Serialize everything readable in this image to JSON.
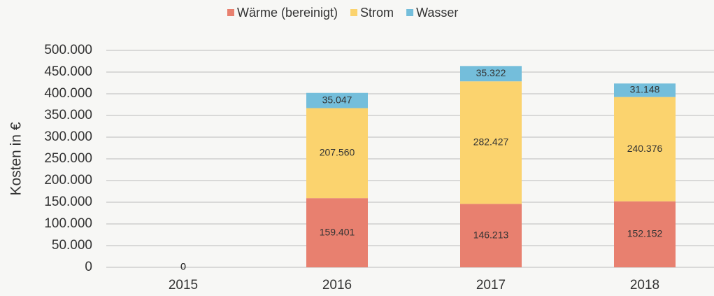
{
  "chart_data": {
    "type": "stacked_bar",
    "y_label": "Kosten in €",
    "categories": [
      "2015",
      "2016",
      "2017",
      "2018"
    ],
    "series": [
      {
        "name": "Wärme (bereinigt)",
        "color": "#e8806f",
        "values": [
          0,
          159401,
          146213,
          152152
        ],
        "value_labels": [
          "0",
          "159.401",
          "146.213",
          "152.152"
        ]
      },
      {
        "name": "Strom",
        "color": "#fbd36e",
        "values": [
          0,
          207560,
          282427,
          240376
        ],
        "value_labels": [
          "0",
          "207.560",
          "282.427",
          "240.376"
        ]
      },
      {
        "name": "Wasser",
        "color": "#74bedb",
        "values": [
          0,
          35047,
          35322,
          31148
        ],
        "value_labels": [
          "0",
          "35.047",
          "35.322",
          "31.148"
        ]
      }
    ],
    "ylim": [
      0,
      500000
    ],
    "yticks": [
      0,
      {
        "value": 50000,
        "label": "50.000"
      },
      {
        "value": 100000,
        "label": "100.000"
      },
      {
        "value": 150000,
        "label": "150.000"
      },
      {
        "value": 200000,
        "label": "200.000"
      },
      {
        "value": 250000,
        "label": "250.000"
      },
      {
        "value": 300000,
        "label": "300.000"
      },
      {
        "value": 350000,
        "label": "350.000"
      },
      {
        "value": 400000,
        "label": "400.000"
      },
      {
        "value": 450000,
        "label": "450.000"
      },
      {
        "value": 500000,
        "label": "500.000"
      }
    ],
    "grid": true,
    "legend": "top"
  }
}
